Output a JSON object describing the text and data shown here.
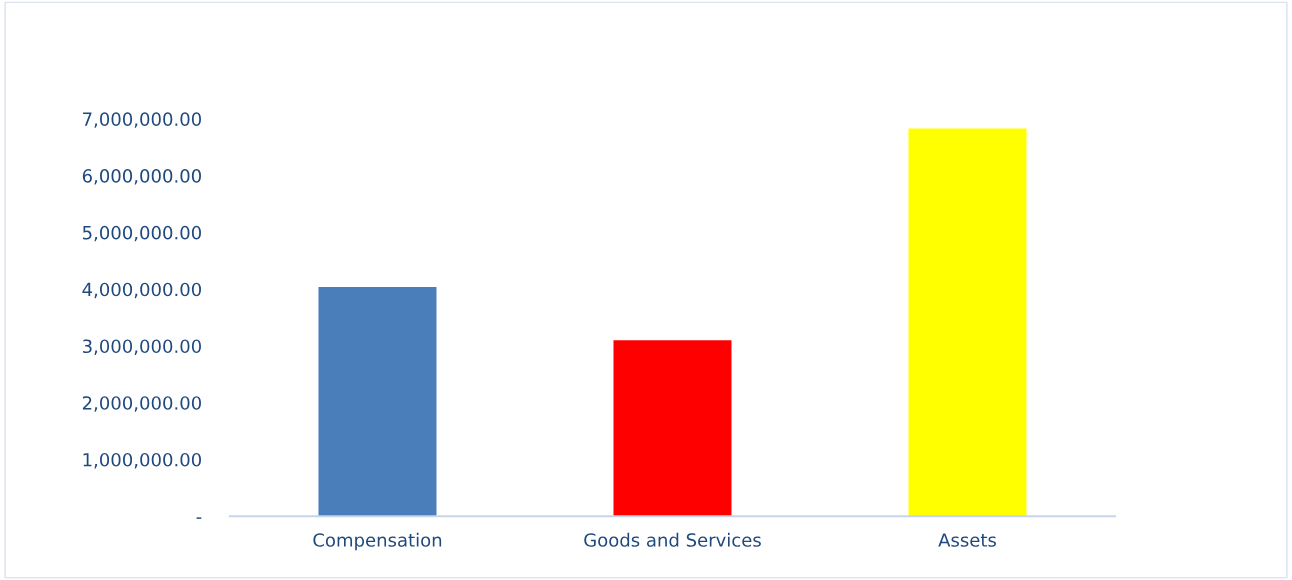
{
  "chart_data": {
    "type": "bar",
    "categories": [
      "Compensation",
      "Goods and Services",
      "Assets"
    ],
    "values": [
      4040000,
      3100000,
      6830000
    ],
    "colors": [
      "#4a7ebb",
      "#ff0000",
      "#ffff00"
    ],
    "ylim": [
      0,
      7000000
    ],
    "yticks": [
      {
        "value": 0,
        "label": "-"
      },
      {
        "value": 1000000,
        "label": "1,000,000.00"
      },
      {
        "value": 2000000,
        "label": "2,000,000.00"
      },
      {
        "value": 3000000,
        "label": "3,000,000.00"
      },
      {
        "value": 4000000,
        "label": "4,000,000.00"
      },
      {
        "value": 5000000,
        "label": "5,000,000.00"
      },
      {
        "value": 6000000,
        "label": "6,000,000.00"
      },
      {
        "value": 7000000,
        "label": "7,000,000.00"
      }
    ],
    "grid": false,
    "legend": false
  }
}
